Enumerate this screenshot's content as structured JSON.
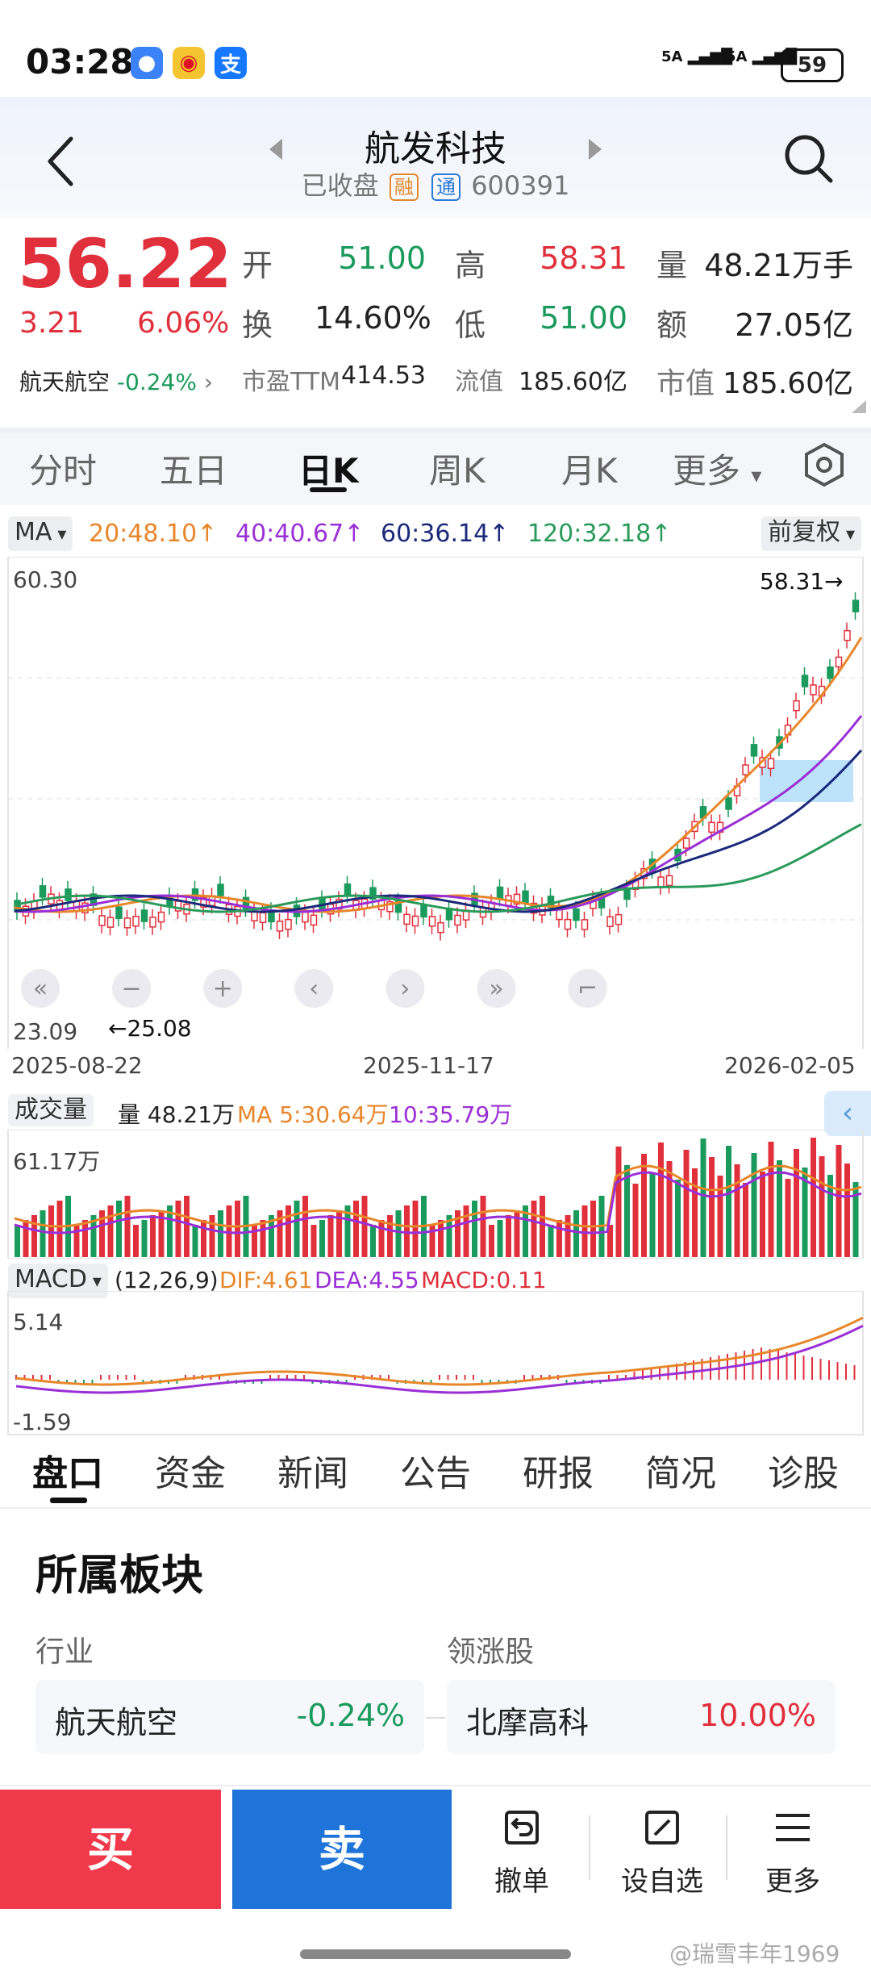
{
  "status_bar": {
    "time": "03:28",
    "signal1": "5A",
    "signal2": "5A",
    "battery": "59"
  },
  "header": {
    "title": "航发科技",
    "status": "已收盘",
    "badge_rong": "融",
    "badge_tong": "通",
    "code": "600391"
  },
  "quote": {
    "price": "56.22",
    "change": "3.21",
    "change_pct": "6.06%",
    "open_label": "开",
    "open": "51.00",
    "high_label": "高",
    "high": "58.31",
    "volume_label": "量",
    "volume": "48.21万手",
    "turnover_label": "换",
    "turnover": "14.60%",
    "low_label": "低",
    "low": "51.00",
    "amount_label": "额",
    "amount": "27.05亿",
    "sector_name": "航天航空",
    "sector_pct": "-0.24%",
    "pe_label": "市盈TTM",
    "pe": "414.53",
    "float_label": "流值",
    "float_value": "185.60亿",
    "cap_label": "市值",
    "cap": "185.60亿"
  },
  "chart_tabs": [
    "分时",
    "五日",
    "日K",
    "周K",
    "月K",
    "更多"
  ],
  "chart_data": {
    "type": "line",
    "ma_selector": "MA",
    "ma_legend": [
      "20:48.10↑",
      "40:40.67↑",
      "60:36.14↑",
      "120:32.18↑"
    ],
    "adjust_selector": "前复权",
    "y_max_label": "60.30",
    "y_min_label": "23.09",
    "high_marker": "58.31→",
    "low_marker": "←25.08",
    "x_labels": [
      "2025-08-22",
      "2025-11-17",
      "2026-02-05"
    ],
    "volume_selector": "成交量",
    "volume_legend": [
      "量 48.21万",
      "MA 5:30.64万",
      "10:35.79万"
    ],
    "volume_max_label": "61.17万",
    "macd_selector": "MACD",
    "macd_legend": [
      "(12,26,9)",
      "DIF:4.61",
      "DEA:4.55",
      "MACD:0.11"
    ],
    "macd_max_label": "5.14",
    "macd_min_label": "-1.59",
    "colors": {
      "up": "#e0303c",
      "down": "#1a9a5c",
      "ma20": "#e8862a",
      "ma40": "#9a2fd6",
      "ma60": "#1b2a7a",
      "ma120": "#2a9a5a"
    }
  },
  "bottom_tabs": [
    "盘口",
    "资金",
    "新闻",
    "公告",
    "研报",
    "简况",
    "诊股"
  ],
  "section": {
    "title": "所属板块",
    "industry_label": "行业",
    "industry_name": "航天航空",
    "industry_pct": "-0.24%",
    "leader_label": "领涨股",
    "leader_name": "北摩高科",
    "leader_pct": "10.00%"
  },
  "actions": {
    "buy": "买",
    "sell": "卖",
    "cancel": "撤单",
    "watch": "设自选",
    "more": "更多"
  },
  "watermark": "@瑞雪丰年1969"
}
